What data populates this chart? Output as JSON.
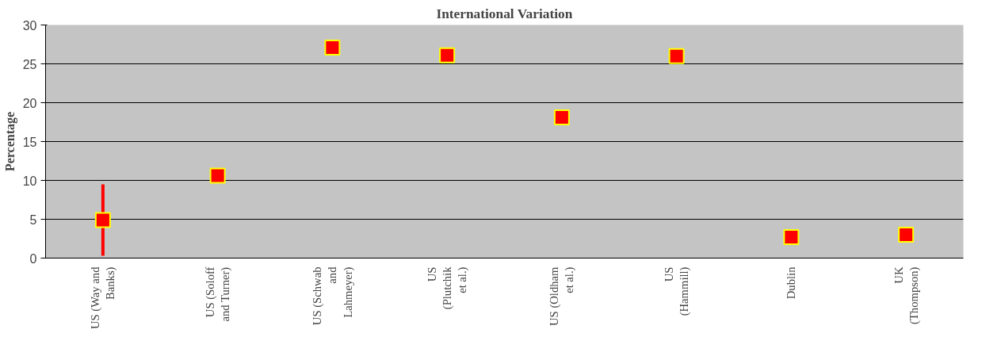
{
  "chart_data": {
    "type": "scatter",
    "title": "International Variation",
    "ylabel": "Percentage",
    "categories": [
      "US (Way and Banks)",
      "US (Soloff and Turner)",
      "US (Schwab and Lahmeyer)",
      "US (Plutchik et al.)",
      "US (Oldham et al.)",
      "US (Hammill)",
      "Dublin",
      "UK (Thompson)"
    ],
    "series": [
      {
        "color": "#ff0000",
        "values": [
          4.9,
          10.6,
          27.1,
          26.1,
          18.1,
          26.0,
          2.7,
          3.0
        ],
        "errors": [
          4.6,
          null,
          null,
          null,
          null,
          null,
          null,
          null
        ]
      }
    ],
    "ylim": [
      0,
      30
    ],
    "yticks": [
      0,
      5,
      10,
      15,
      20,
      25,
      30
    ],
    "grid": "y",
    "marker": "square"
  }
}
